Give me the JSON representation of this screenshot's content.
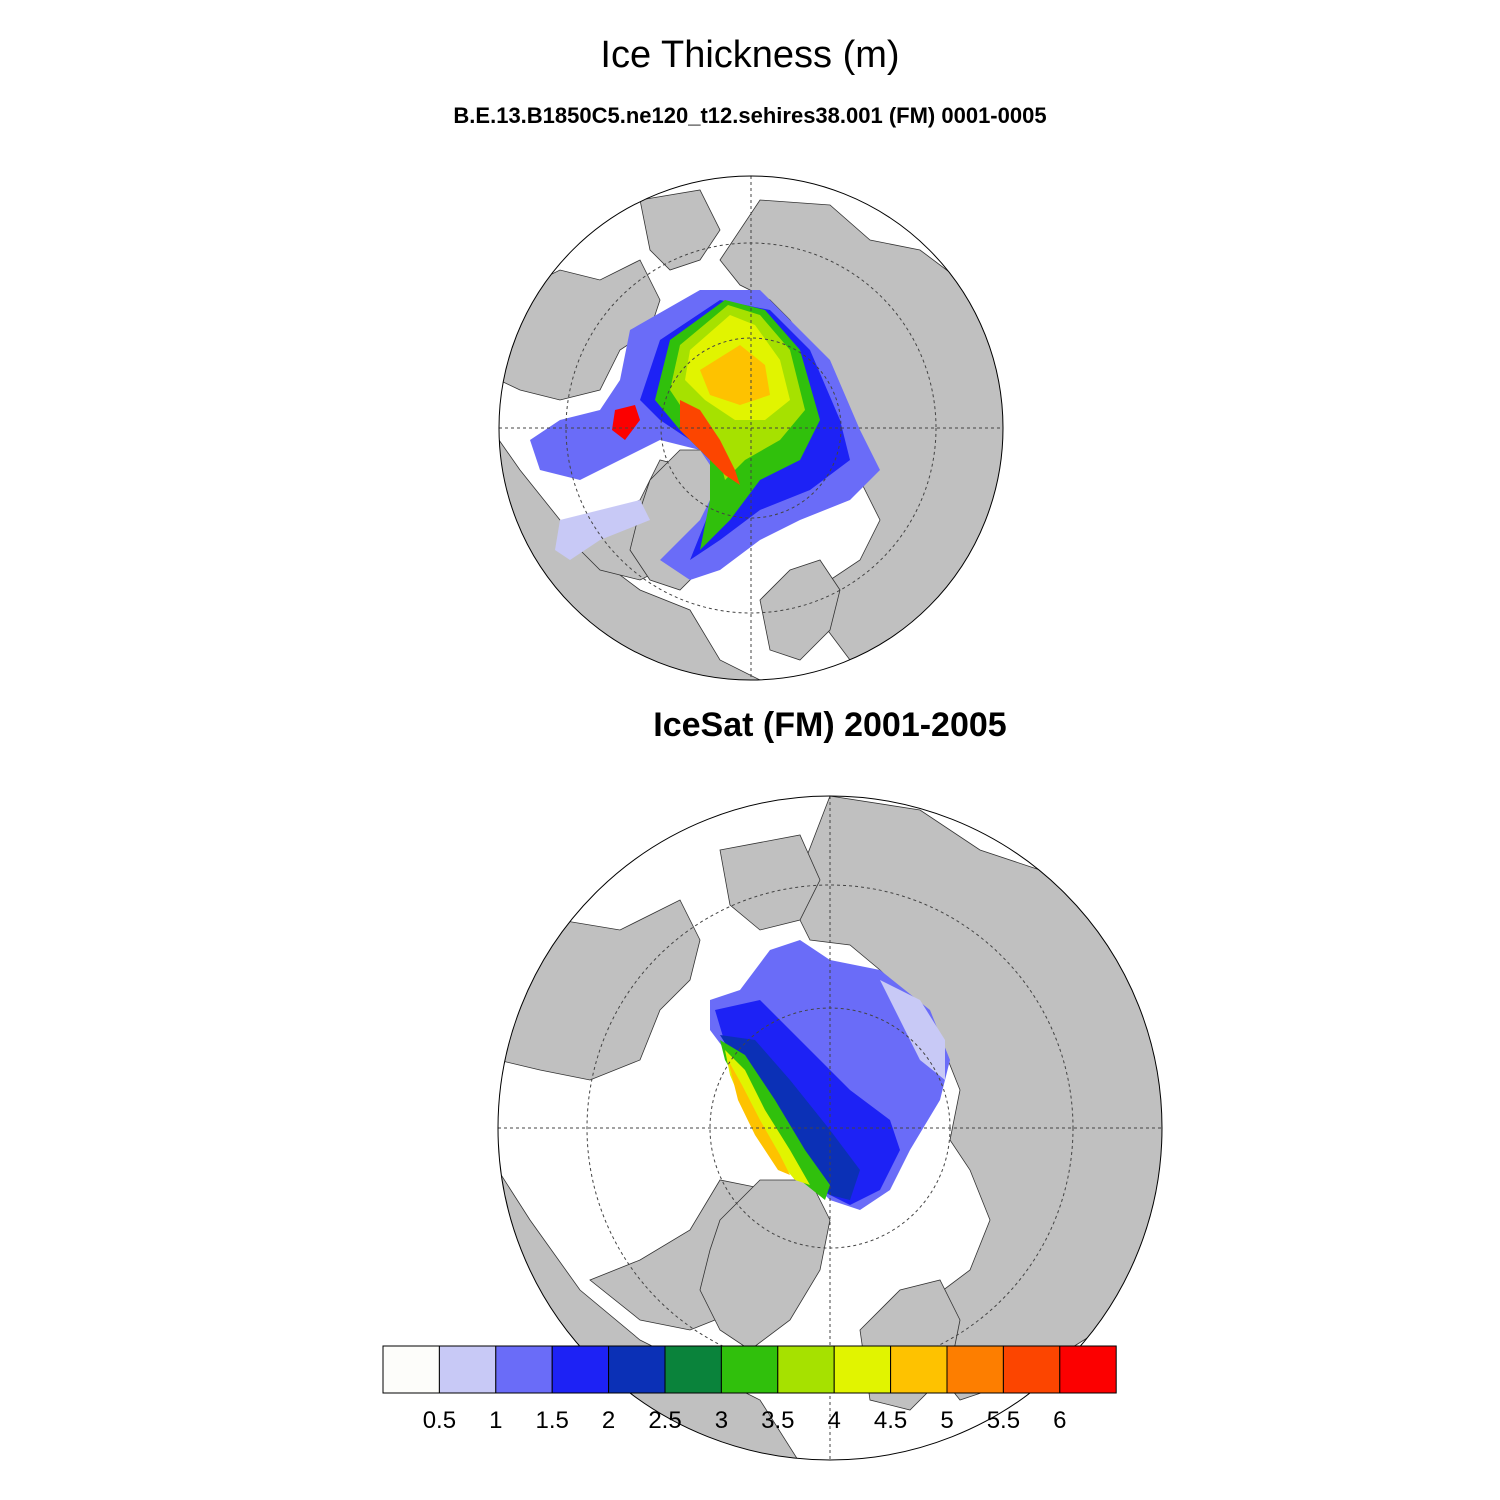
{
  "title": "Ice Thickness (m)",
  "panels": [
    {
      "subtitle": "B.E.13.B1850C5.ne120_t12.sehires38.001 (FM) 0001-0005"
    },
    {
      "subtitle": "IceSat (FM) 2001-2005"
    }
  ],
  "colorbar": {
    "colors": [
      "#fdfdfa",
      "#c8c9f6",
      "#6a6cf8",
      "#1d22f5",
      "#0b30b6",
      "#0a833b",
      "#30c00c",
      "#a6e100",
      "#e1f400",
      "#fec200",
      "#fd7e00",
      "#fc4500",
      "#fc0000"
    ],
    "labels": [
      "0.5",
      "1",
      "1.5",
      "2",
      "2.5",
      "3",
      "3.5",
      "4",
      "4.5",
      "5",
      "5.5",
      "6"
    ]
  },
  "colors": {
    "land": "#c0c0c0",
    "ocean": "#ffffff"
  }
}
